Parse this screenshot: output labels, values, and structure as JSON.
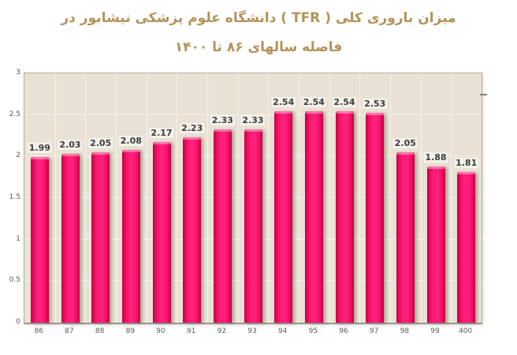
{
  "title": {
    "line1": "میزان باروری کلی  ( TFR ) دانشگاه علوم پزشکی نیشابور در",
    "line2": "فاصله سالهای ۸۶ تا ۱۴۰۰",
    "color": "#b3925a"
  },
  "chart_data": {
    "type": "bar",
    "title": "میزان باروری کلی ( TFR ) دانشگاه علوم پزشکی نیشابور در فاصله سالهای ۸۶ تا ۱۴۰۰",
    "categories": [
      "86",
      "87",
      "88",
      "89",
      "90",
      "91",
      "92",
      "93",
      "94",
      "95",
      "96",
      "97",
      "98",
      "99",
      "400"
    ],
    "values": [
      1.99,
      2.03,
      2.05,
      2.08,
      2.17,
      2.23,
      2.33,
      2.33,
      2.54,
      2.54,
      2.54,
      2.53,
      2.05,
      1.88,
      1.81
    ],
    "value_labels": [
      "1.99",
      "2.03",
      "2.05",
      "2.08",
      "2.17",
      "2.23",
      "2.33",
      "2.33",
      "2.54",
      "2.54",
      "2.54",
      "2.53",
      "2.05",
      "1.88",
      "1.81"
    ],
    "xlabel": "",
    "ylabel": "",
    "ylim": [
      0,
      3
    ],
    "yticks": [
      0,
      0.5,
      1,
      1.5,
      2,
      2.5,
      3
    ],
    "ytick_labels": [
      "0",
      "0.5",
      "1",
      "1.5",
      "2",
      "2.5",
      "3"
    ],
    "grid": true,
    "legend": false,
    "data_labels": true,
    "colors": {
      "bar_center": "#ff2079",
      "bar_mid": "#ee0a61",
      "bar_edge": "#c20147",
      "plot_background": "#e9e2d4",
      "grid_line": "#f7f3ea",
      "axis_text": "#595959",
      "label_text": "#3d3d3d",
      "page_background": "#ffffff"
    }
  }
}
